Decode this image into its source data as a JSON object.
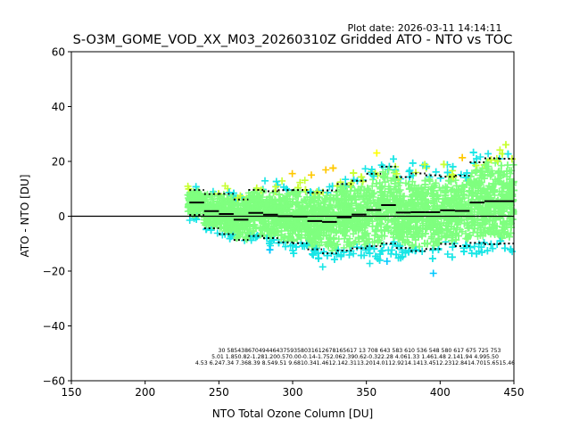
{
  "chart_data": {
    "type": "scatter",
    "title": "S-O3M_GOME_VOD_XX_M03_20260310Z Gridded ATO - NTO vs TOC",
    "plot_date": "Plot date: 2026-03-11 14:14:11",
    "xlabel": "NTO Total Ozone Column [DU]",
    "ylabel": "ATO - NTO [DU]",
    "xlim": [
      150,
      450
    ],
    "ylim": [
      -60,
      60
    ],
    "xticks": [
      150,
      200,
      250,
      300,
      350,
      400,
      450
    ],
    "yticks": [
      -60,
      -40,
      -20,
      0,
      20,
      40,
      60
    ],
    "xtick_labels": [
      "150",
      "200",
      "250",
      "300",
      "350",
      "400",
      "450"
    ],
    "ytick_labels": [
      "−60",
      "−40",
      "−20",
      "0",
      "20",
      "40",
      "60"
    ],
    "zero_line": 0,
    "marker": "plus",
    "colormap": [
      "#0000cd",
      "#0a50ff",
      "#00c8ff",
      "#19e6e6",
      "#7fff7f",
      "#c8ff32",
      "#ffff00",
      "#ffc800",
      "#ff9600"
    ],
    "bins": {
      "centers": [
        235,
        245,
        255,
        265,
        275,
        285,
        295,
        305,
        315,
        325,
        335,
        345,
        355,
        365,
        375,
        385,
        395,
        405,
        415,
        425,
        435,
        445
      ],
      "mean": [
        5.01,
        1.85,
        0.82,
        -1.28,
        1.2,
        0.57,
        0.0,
        -0.14,
        -1.75,
        -2.06,
        -0.39,
        0.62,
        2.28,
        4.06,
        1.33,
        1.46,
        1.48,
        2.14,
        1.94,
        4.99,
        5.5,
        5.5
      ],
      "std": [
        4.53,
        6.24,
        7.34,
        7.36,
        8.39,
        8.54,
        9.51,
        9.68,
        10.34,
        11.46,
        12.14,
        12.31,
        13.2,
        14.01,
        12.92,
        14.14,
        13.45,
        12.23,
        12.84,
        14.7,
        15.65,
        15.46
      ]
    },
    "stats_rows": [
      "30   5854386704944643759358031612678165617 13 708  643  583  610  536  548  580  617  675  725  753",
      "5.01 1.850.82-1.281.200.570.00-0.14-1.752.062.390.62-0.322.28 4.061.33 1.461.48 2.141.94 4.995.50",
      "4.53 6.247.34 7.368.39 8.549.51 9.6810.341.4612.142.3113.2014.0112.9214.1413.4512.2312.8414.7015.6515.46"
    ]
  }
}
